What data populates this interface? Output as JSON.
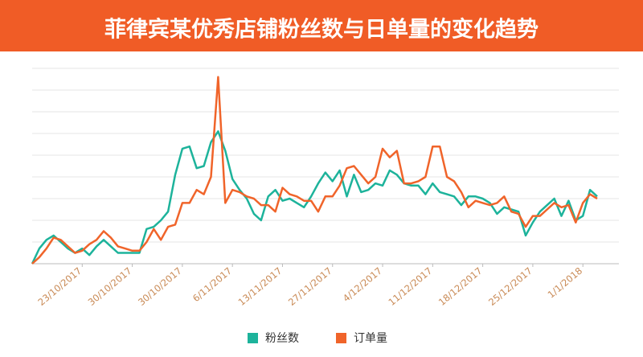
{
  "chart_data": {
    "type": "line",
    "title": "菲律宾某优秀店铺粉丝数与日单量的变化趋势",
    "categories": [
      null,
      null,
      null,
      null,
      null,
      null,
      null,
      "23/10/2017",
      null,
      null,
      null,
      null,
      null,
      null,
      "30/10/2017",
      null,
      null,
      null,
      null,
      null,
      null,
      "30/10/2017",
      null,
      null,
      null,
      null,
      null,
      null,
      "6/11/2017",
      null,
      null,
      null,
      null,
      null,
      null,
      "13/11/2017",
      null,
      null,
      null,
      null,
      null,
      null,
      "27/11/2017",
      null,
      null,
      null,
      null,
      null,
      null,
      "4/12/2017",
      null,
      null,
      null,
      null,
      null,
      null,
      "11/12/2017",
      null,
      null,
      null,
      null,
      null,
      null,
      "18/12/2017",
      null,
      null,
      null,
      null,
      null,
      null,
      "25/12/2017",
      null,
      null,
      null,
      null,
      null,
      null,
      "1/1/2018",
      null,
      null
    ],
    "series": [
      {
        "name": "粉丝数",
        "color": "#1db39b",
        "values": [
          0,
          0.7,
          1.1,
          1.3,
          1.0,
          0.7,
          0.5,
          0.7,
          0.4,
          0.8,
          1.1,
          0.8,
          0.5,
          0.5,
          0.5,
          0.5,
          1.6,
          1.7,
          2.0,
          2.4,
          4.1,
          5.3,
          5.4,
          4.4,
          4.5,
          5.6,
          6.1,
          5.2,
          3.9,
          3.4,
          3.0,
          2.3,
          2.0,
          3.1,
          3.4,
          2.9,
          3.0,
          2.8,
          2.6,
          3.1,
          3.7,
          4.2,
          3.8,
          4.3,
          3.1,
          4.1,
          3.3,
          3.4,
          3.7,
          3.6,
          4.3,
          4.1,
          3.7,
          3.6,
          3.6,
          3.2,
          3.7,
          3.3,
          3.2,
          3.1,
          2.7,
          3.1,
          3.1,
          3.0,
          2.8,
          2.3,
          2.6,
          2.5,
          2.4,
          1.3,
          1.9,
          2.4,
          2.7,
          3.0,
          2.2,
          2.9,
          2.0,
          2.2,
          3.4,
          3.1
        ]
      },
      {
        "name": "订单量",
        "color": "#f0642a",
        "values": [
          0,
          0.3,
          0.7,
          1.2,
          1.1,
          0.8,
          0.5,
          0.6,
          0.9,
          1.1,
          1.5,
          1.2,
          0.8,
          0.7,
          0.6,
          0.6,
          1.0,
          1.6,
          1.1,
          1.7,
          1.8,
          2.8,
          2.8,
          3.4,
          3.2,
          4.0,
          8.6,
          2.8,
          3.4,
          3.3,
          3.1,
          3.0,
          2.7,
          2.7,
          2.4,
          3.5,
          3.2,
          3.1,
          2.9,
          2.9,
          2.4,
          3.1,
          3.1,
          3.6,
          4.4,
          4.5,
          4.1,
          3.7,
          4.0,
          5.3,
          4.9,
          5.2,
          3.7,
          3.7,
          3.8,
          4.0,
          5.4,
          5.4,
          4.0,
          3.8,
          3.3,
          2.6,
          2.9,
          2.8,
          2.7,
          2.8,
          3.1,
          2.4,
          2.3,
          1.7,
          2.2,
          2.2,
          2.5,
          2.8,
          2.6,
          2.7,
          1.9,
          2.8,
          3.2,
          3.0
        ]
      }
    ],
    "ylim": [
      0,
      9
    ],
    "ygrid": [
      1,
      2,
      3,
      4,
      5,
      6,
      7,
      8,
      9
    ],
    "grid": true
  }
}
